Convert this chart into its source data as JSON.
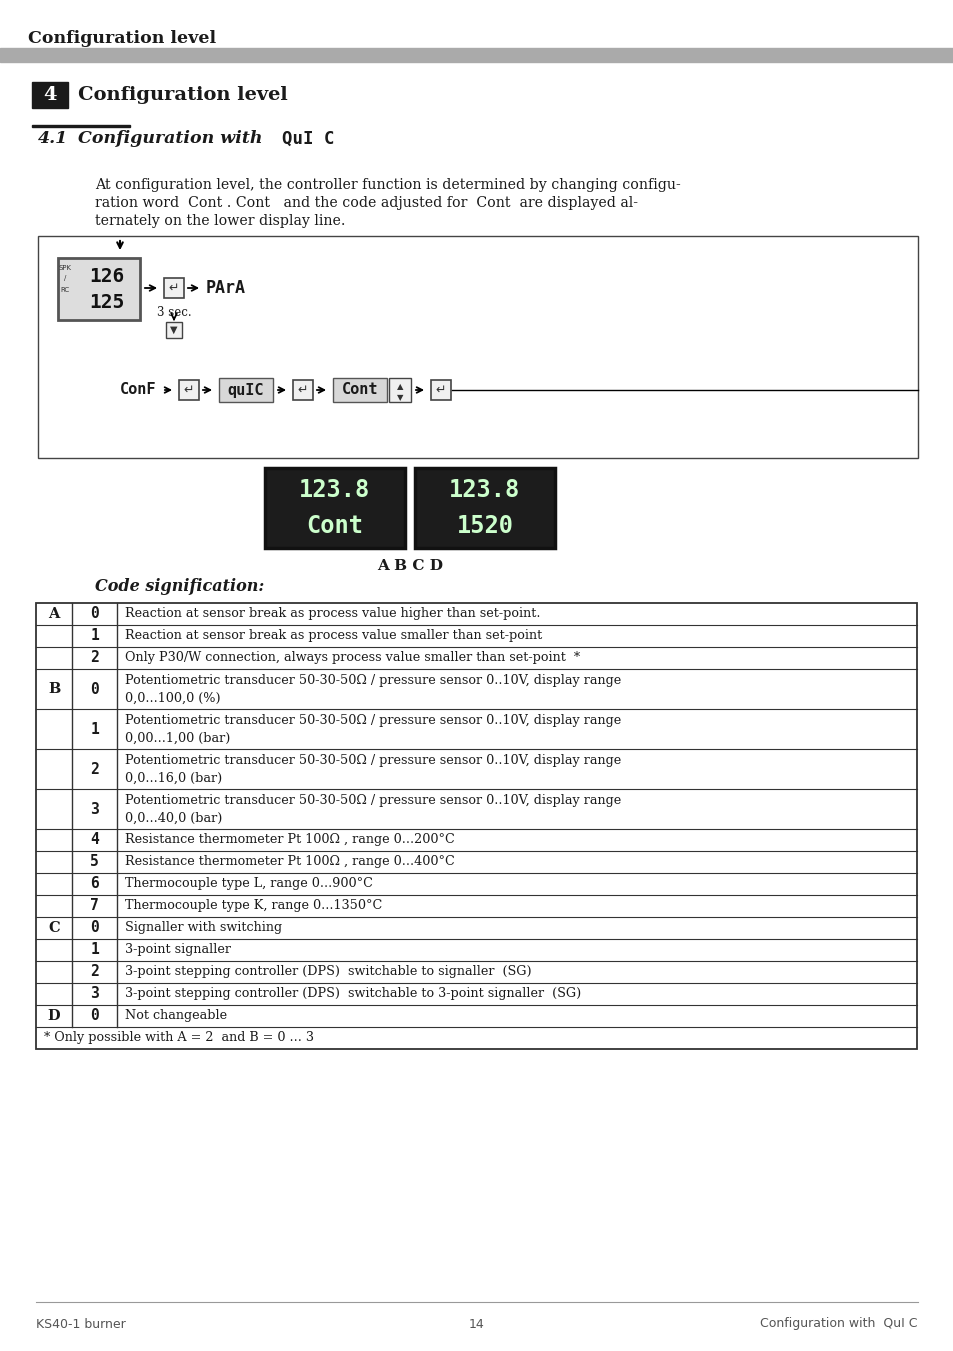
{
  "page_title": "Configuration level",
  "section_num": "4",
  "section_title": "Configuration level",
  "subsection_num": "4.1",
  "subsection_title_plain": "Configuration with",
  "subsection_title_code": "QuI C",
  "body_line1": "At configuration level, the controller function is determined by changing configu-",
  "body_line2": "ration word  Cont . Cont   and the code adjusted for  Cont  are displayed al-",
  "body_line3": "ternately on the lower display line.",
  "diagram_lcd1_top": "126",
  "diagram_lcd1_bot": "125",
  "diagram_text_parra": "PArA",
  "diagram_label_3sec": "3 sec.",
  "diagram_conf_line": "ConF",
  "diagram_quic": "quIC",
  "diagram_cont": "Cont",
  "lcd_line1_left": "123.8",
  "lcd_line2_left": "Cont",
  "lcd_line1_right": "123.8",
  "lcd_line2_right": "1520",
  "abcd_label": "A B C D",
  "code_signification_title": "Code signification:",
  "table_data": [
    {
      "col_a": "A",
      "col_b": "0",
      "col_c": "Reaction at sensor break as process value higher than set-point.",
      "multiline": false
    },
    {
      "col_a": "",
      "col_b": "1",
      "col_c": "Reaction at sensor break as process value smaller than set-point",
      "multiline": false
    },
    {
      "col_a": "",
      "col_b": "2",
      "col_c": "Only P30/W connection, always process value smaller than set-point  *",
      "multiline": false
    },
    {
      "col_a": "B",
      "col_b": "0",
      "col_c": "Potentiometric transducer 50-30-50Ω / pressure sensor 0..10V, display range|0,0...100,0 (%)",
      "multiline": true
    },
    {
      "col_a": "",
      "col_b": "1",
      "col_c": "Potentiometric transducer 50-30-50Ω / pressure sensor 0..10V, display range|0,00...1,00 (bar)",
      "multiline": true
    },
    {
      "col_a": "",
      "col_b": "2",
      "col_c": "Potentiometric transducer 50-30-50Ω / pressure sensor 0..10V, display range|0,0...16,0 (bar)",
      "multiline": true
    },
    {
      "col_a": "",
      "col_b": "3",
      "col_c": "Potentiometric transducer 50-30-50Ω / pressure sensor 0..10V, display range|0,0...40,0 (bar)",
      "multiline": true
    },
    {
      "col_a": "",
      "col_b": "4",
      "col_c": "Resistance thermometer Pt 100Ω , range 0...200°C",
      "multiline": false
    },
    {
      "col_a": "",
      "col_b": "5",
      "col_c": "Resistance thermometer Pt 100Ω , range 0...400°C",
      "multiline": false
    },
    {
      "col_a": "",
      "col_b": "6",
      "col_c": "Thermocouple type L, range 0...900°C",
      "multiline": false
    },
    {
      "col_a": "",
      "col_b": "7",
      "col_c": "Thermocouple type K, range 0...1350°C",
      "multiline": false
    },
    {
      "col_a": "C",
      "col_b": "0",
      "col_c": "Signaller with switching",
      "multiline": false
    },
    {
      "col_a": "",
      "col_b": "1",
      "col_c": "3-point signaller",
      "multiline": false
    },
    {
      "col_a": "",
      "col_b": "2",
      "col_c": "3-point stepping controller (DPS)  switchable to signaller  (SG)",
      "multiline": false
    },
    {
      "col_a": "",
      "col_b": "3",
      "col_c": "3-point stepping controller (DPS)  switchable to 3-point signaller  (SG)",
      "multiline": false
    },
    {
      "col_a": "D",
      "col_b": "0",
      "col_c": "Not changeable",
      "multiline": false
    }
  ],
  "footnote": "* Only possible with A = 2  and B = 0 ... 3",
  "footer_left": "KS40-1 burner",
  "footer_center": "14",
  "footer_right": "Configuration with  QuI C",
  "background_color": "#ffffff",
  "header_bar_color": "#aaaaaa",
  "section_box_color": "#1a1a1a",
  "table_border_color": "#333333",
  "lcd_bg": "#1c1c1c",
  "lcd_fg": "#e8ffe8"
}
